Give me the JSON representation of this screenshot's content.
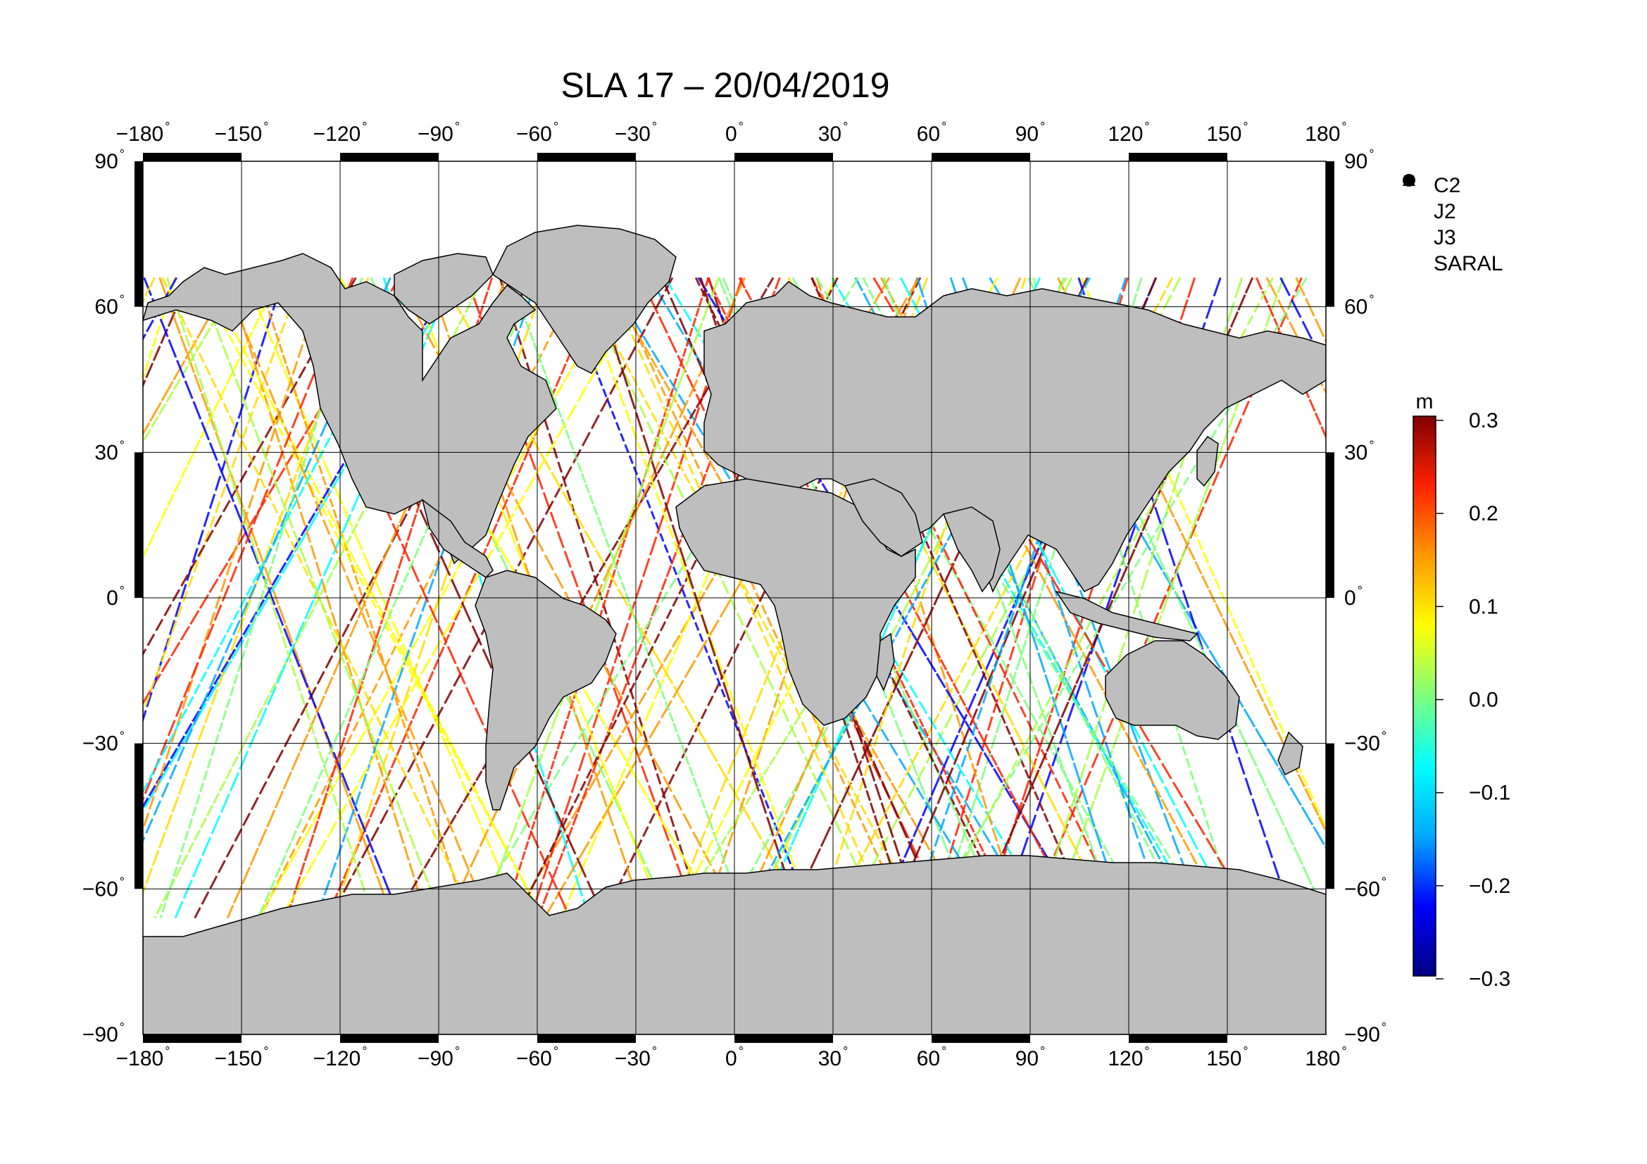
{
  "title": "SLA 17 – 20/04/2019",
  "axes": {
    "lon_ticks": [
      "−180",
      "−150",
      "−120",
      "−90",
      "−60",
      "−30",
      "0",
      "30",
      "60",
      "90",
      "120",
      "150",
      "180"
    ],
    "lat_ticks": [
      "90",
      "60",
      "30",
      "0",
      "−30",
      "−60",
      "−90"
    ],
    "lon_range": [
      -180,
      180
    ],
    "lat_range": [
      -90,
      90
    ]
  },
  "legend": {
    "items": [
      {
        "label": "C2",
        "symbol": "circle"
      },
      {
        "label": "J2",
        "symbol": "square"
      },
      {
        "label": "J3",
        "symbol": "diamond"
      },
      {
        "label": "SARAL",
        "symbol": "triangle"
      }
    ]
  },
  "colorbar": {
    "unit": "m",
    "ticks": [
      "0.3",
      "0.2",
      "0.1",
      "0.0",
      "−0.1",
      "−0.2",
      "−0.3"
    ],
    "range": [
      -0.3,
      0.3
    ],
    "colors": [
      "#000080",
      "#0000ff",
      "#00aaff",
      "#00ffff",
      "#7fff7f",
      "#ffff00",
      "#ff9900",
      "#ff2200",
      "#800000"
    ]
  },
  "colors": {
    "land": "#bebebe",
    "coast": "#000000",
    "ocean": "#ffffff"
  },
  "chart_data": {
    "type": "scatter",
    "title": "SLA 17 – 20/04/2019",
    "xlabel": "",
    "ylabel": "",
    "xlim": [
      -180,
      180
    ],
    "ylim": [
      -90,
      90
    ],
    "colorbar_unit": "m",
    "value_range": [
      -0.3,
      0.3
    ],
    "series": [
      {
        "name": "C2"
      },
      {
        "name": "J2"
      },
      {
        "name": "J3"
      },
      {
        "name": "SARAL"
      }
    ]
  }
}
